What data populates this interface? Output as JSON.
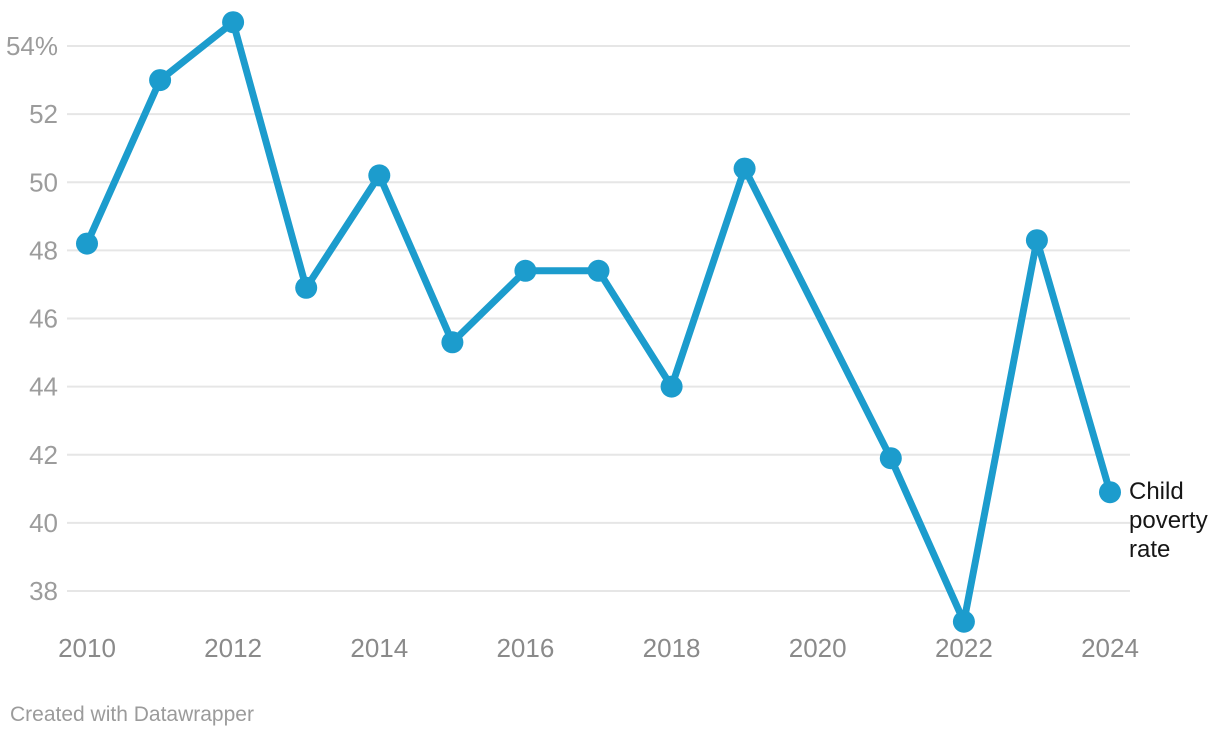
{
  "attribution": "Created with Datawrapper",
  "chart_data": {
    "type": "line",
    "title": "",
    "xlabel": "",
    "ylabel": "",
    "x": [
      2010,
      2011,
      2012,
      2013,
      2014,
      2015,
      2016,
      2017,
      2018,
      2019,
      2020,
      2021,
      2022,
      2023,
      2024
    ],
    "series": [
      {
        "name": "Child poverty rate",
        "values": [
          48.2,
          53.0,
          54.7,
          46.9,
          50.2,
          45.3,
          47.4,
          47.4,
          44.0,
          50.4,
          null,
          41.9,
          37.1,
          48.3,
          40.9
        ],
        "color": "#1c9ccd"
      }
    ],
    "x_tick_years": [
      2010,
      2012,
      2014,
      2016,
      2018,
      2020,
      2022,
      2024
    ],
    "y_ticks": [
      54,
      52,
      50,
      48,
      46,
      44,
      42,
      40,
      38
    ],
    "y_tick_labels": [
      "54%",
      "52",
      "50",
      "48",
      "46",
      "44",
      "42",
      "40",
      "38"
    ],
    "ylim": [
      36.7,
      55.4
    ],
    "xlim": [
      2010,
      2024
    ],
    "grid": "horizontal",
    "legend_position": "direct-right",
    "gap_note": "no data point for 2020; line connects 2019 to 2021",
    "colors": {
      "line": "#1c9ccd",
      "gridline": "#e6e6e6",
      "y_tick_text": "#9c9c9c",
      "x_tick_text": "#8a8a8a",
      "direct_label_text": "#161616",
      "background": "#ffffff"
    }
  }
}
